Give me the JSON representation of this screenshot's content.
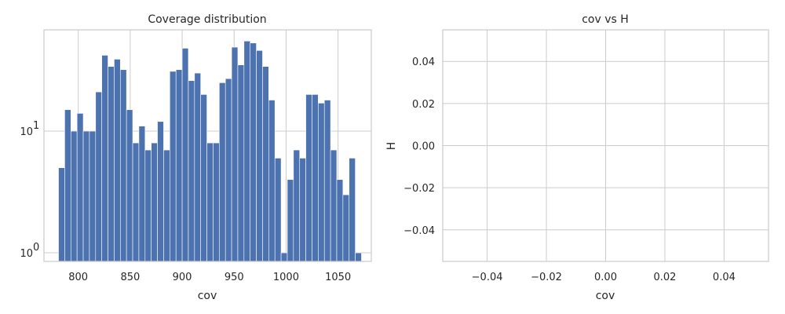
{
  "chart_data": [
    {
      "type": "bar",
      "title": "Coverage distribution",
      "xlabel": "cov",
      "ylabel": "",
      "yscale": "log",
      "grid": true,
      "xlim": [
        767,
        1082
      ],
      "ylim": [
        0.85,
        68
      ],
      "xticks": [
        800,
        850,
        900,
        950,
        1000,
        1050
      ],
      "yticks": [
        {
          "value": 1,
          "label_base": "10",
          "label_exp": "0"
        },
        {
          "value": 10,
          "label_base": "10",
          "label_exp": "1"
        }
      ],
      "bin_start": 781,
      "bin_width": 5.95,
      "values": [
        5,
        15,
        10,
        14,
        10,
        10,
        21,
        42,
        34,
        39,
        32,
        15,
        8,
        11,
        7,
        8,
        12,
        7,
        31,
        32,
        48,
        26,
        30,
        20,
        8,
        8,
        25,
        27,
        49,
        35,
        55,
        53,
        46,
        34,
        18,
        6,
        1,
        4,
        7,
        6,
        20,
        20,
        17,
        18,
        7,
        4,
        3,
        6,
        1
      ]
    },
    {
      "type": "scatter",
      "title": "cov vs H",
      "xlabel": "cov",
      "ylabel": "H",
      "grid": true,
      "xlim": [
        -0.055,
        0.055
      ],
      "ylim": [
        -0.055,
        0.055
      ],
      "xticks": [
        -0.04,
        -0.02,
        0.0,
        0.02,
        0.04
      ],
      "xtick_labels": [
        "−0.04",
        "−0.02",
        "0.00",
        "0.02",
        "0.04"
      ],
      "yticks": [
        -0.04,
        -0.02,
        0.0,
        0.02,
        0.04
      ],
      "ytick_labels": [
        "−0.04",
        "−0.02",
        "0.00",
        "0.02",
        "0.04"
      ],
      "points": []
    }
  ]
}
